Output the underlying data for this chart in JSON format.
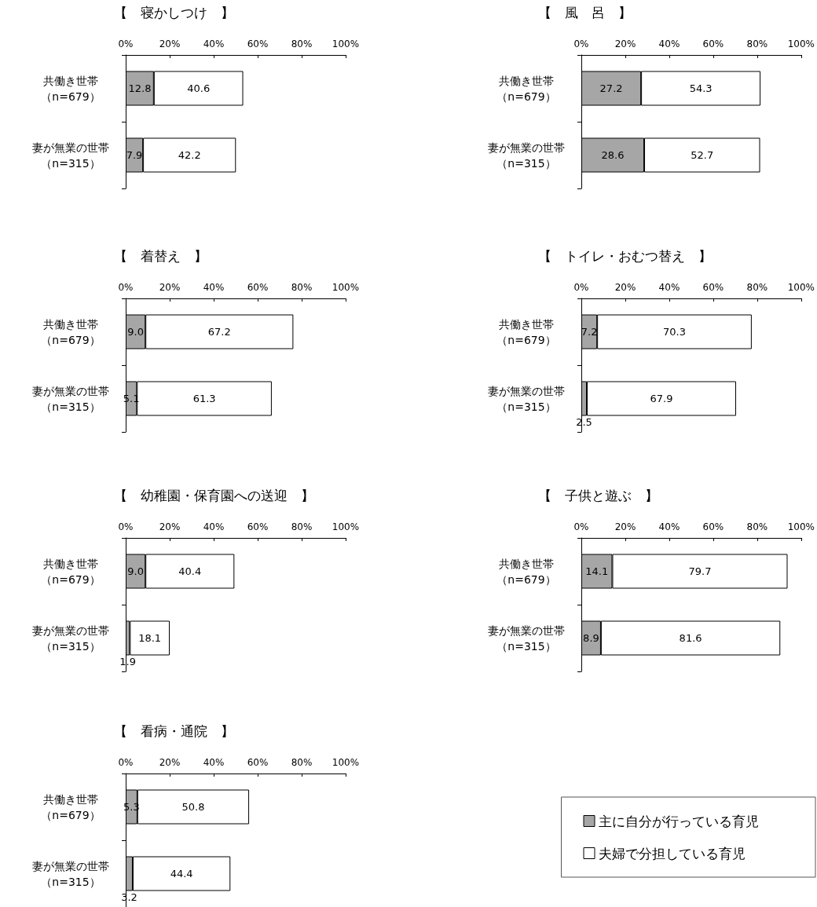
{
  "chart_data": [
    {
      "type": "bar",
      "orientation": "horizontal",
      "stacked": true,
      "title": "【　寝かしつけ　】",
      "categories": [
        "共働き世帯（n=679）",
        "妻が無業の世帯（n=315）"
      ],
      "xlim": [
        0,
        100
      ],
      "xticks": [
        {
          "value": 0,
          "label": "0%"
        },
        {
          "value": 20,
          "label": "20%"
        },
        {
          "value": 40,
          "label": "40%"
        },
        {
          "value": 60,
          "label": "60%"
        },
        {
          "value": 80,
          "label": "80%"
        },
        {
          "value": 100,
          "label": "100%"
        }
      ],
      "grid": false,
      "legend": false,
      "series": [
        {
          "color": "#a6a6a6",
          "values": [
            12.8,
            7.9
          ],
          "value_labels": [
            "12.8",
            "7.9"
          ]
        },
        {
          "color": "#ffffff",
          "values": [
            40.6,
            42.2
          ],
          "value_labels": [
            "40.6",
            "42.2"
          ]
        }
      ]
    },
    {
      "type": "bar",
      "orientation": "horizontal",
      "stacked": true,
      "title": "【　風　呂　】",
      "categories": [
        "共働き世帯（n=679）",
        "妻が無業の世帯（n=315）"
      ],
      "xlim": [
        0,
        100
      ],
      "xticks": [
        {
          "value": 0,
          "label": "0%"
        },
        {
          "value": 20,
          "label": "20%"
        },
        {
          "value": 40,
          "label": "40%"
        },
        {
          "value": 60,
          "label": "60%"
        },
        {
          "value": 80,
          "label": "80%"
        },
        {
          "value": 100,
          "label": "100%"
        }
      ],
      "grid": false,
      "legend": false,
      "series": [
        {
          "color": "#a6a6a6",
          "values": [
            27.2,
            28.6
          ],
          "value_labels": [
            "27.2",
            "28.6"
          ]
        },
        {
          "color": "#ffffff",
          "values": [
            54.3,
            52.7
          ],
          "value_labels": [
            "54.3",
            "52.7"
          ]
        }
      ]
    },
    {
      "type": "bar",
      "orientation": "horizontal",
      "stacked": true,
      "title": "【　着替え　】",
      "categories": [
        "共働き世帯（n=679）",
        "妻が無業の世帯（n=315）"
      ],
      "xlim": [
        0,
        100
      ],
      "xticks": [
        {
          "value": 0,
          "label": "0%"
        },
        {
          "value": 20,
          "label": "20%"
        },
        {
          "value": 40,
          "label": "40%"
        },
        {
          "value": 60,
          "label": "60%"
        },
        {
          "value": 80,
          "label": "80%"
        },
        {
          "value": 100,
          "label": "100%"
        }
      ],
      "grid": false,
      "legend": false,
      "series": [
        {
          "color": "#a6a6a6",
          "values": [
            9.0,
            5.1
          ],
          "value_labels": [
            "9.0",
            "5.1"
          ]
        },
        {
          "color": "#ffffff",
          "values": [
            67.2,
            61.3
          ],
          "value_labels": [
            "67.2",
            "61.3"
          ]
        }
      ]
    },
    {
      "type": "bar",
      "orientation": "horizontal",
      "stacked": true,
      "title": "【　トイレ・おむつ替え　】",
      "categories": [
        "共働き世帯（n=679）",
        "妻が無業の世帯（n=315）"
      ],
      "xlim": [
        0,
        100
      ],
      "xticks": [
        {
          "value": 0,
          "label": "0%"
        },
        {
          "value": 20,
          "label": "20%"
        },
        {
          "value": 40,
          "label": "40%"
        },
        {
          "value": 60,
          "label": "60%"
        },
        {
          "value": 80,
          "label": "80%"
        },
        {
          "value": 100,
          "label": "100%"
        }
      ],
      "grid": false,
      "legend": false,
      "series": [
        {
          "color": "#a6a6a6",
          "values": [
            7.2,
            2.5
          ],
          "value_labels": [
            "7.2",
            "2.5"
          ]
        },
        {
          "color": "#ffffff",
          "values": [
            70.3,
            67.9
          ],
          "value_labels": [
            "70.3",
            "67.9"
          ]
        }
      ]
    },
    {
      "type": "bar",
      "orientation": "horizontal",
      "stacked": true,
      "title": "【　幼稚園・保育園への送迎　】",
      "categories": [
        "共働き世帯（n=679）",
        "妻が無業の世帯（n=315）"
      ],
      "xlim": [
        0,
        100
      ],
      "xticks": [
        {
          "value": 0,
          "label": "0%"
        },
        {
          "value": 20,
          "label": "20%"
        },
        {
          "value": 40,
          "label": "40%"
        },
        {
          "value": 60,
          "label": "60%"
        },
        {
          "value": 80,
          "label": "80%"
        },
        {
          "value": 100,
          "label": "100%"
        }
      ],
      "grid": false,
      "legend": false,
      "series": [
        {
          "color": "#a6a6a6",
          "values": [
            9.0,
            1.9
          ],
          "value_labels": [
            "9.0",
            "1.9"
          ]
        },
        {
          "color": "#ffffff",
          "values": [
            40.4,
            18.1
          ],
          "value_labels": [
            "40.4",
            "18.1"
          ]
        }
      ]
    },
    {
      "type": "bar",
      "orientation": "horizontal",
      "stacked": true,
      "title": "【　子供と遊ぶ　】",
      "categories": [
        "共働き世帯（n=679）",
        "妻が無業の世帯（n=315）"
      ],
      "xlim": [
        0,
        100
      ],
      "xticks": [
        {
          "value": 0,
          "label": "0%"
        },
        {
          "value": 20,
          "label": "20%"
        },
        {
          "value": 40,
          "label": "40%"
        },
        {
          "value": 60,
          "label": "60%"
        },
        {
          "value": 80,
          "label": "80%"
        },
        {
          "value": 100,
          "label": "100%"
        }
      ],
      "grid": false,
      "legend": false,
      "series": [
        {
          "color": "#a6a6a6",
          "values": [
            14.1,
            8.9
          ],
          "value_labels": [
            "14.1",
            "8.9"
          ]
        },
        {
          "color": "#ffffff",
          "values": [
            79.7,
            81.6
          ],
          "value_labels": [
            "79.7",
            "81.6"
          ]
        }
      ]
    },
    {
      "type": "bar",
      "orientation": "horizontal",
      "stacked": true,
      "title": "【　看病・通院　】",
      "categories": [
        "共働き世帯（n=679）",
        "妻が無業の世帯（n=315）"
      ],
      "xlim": [
        0,
        100
      ],
      "xticks": [
        {
          "value": 0,
          "label": "0%"
        },
        {
          "value": 20,
          "label": "20%"
        },
        {
          "value": 40,
          "label": "40%"
        },
        {
          "value": 60,
          "label": "60%"
        },
        {
          "value": 80,
          "label": "80%"
        },
        {
          "value": 100,
          "label": "100%"
        }
      ],
      "grid": false,
      "legend": "right",
      "series": [
        {
          "name": "主に自分が行っている育児",
          "color": "#a6a6a6",
          "values": [
            5.3,
            3.2
          ],
          "value_labels": [
            "5.3",
            "3.2"
          ]
        },
        {
          "name": "夫婦で分担している育児",
          "color": "#ffffff",
          "values": [
            50.8,
            44.4
          ],
          "value_labels": [
            "50.8",
            "44.4"
          ]
        }
      ]
    }
  ]
}
